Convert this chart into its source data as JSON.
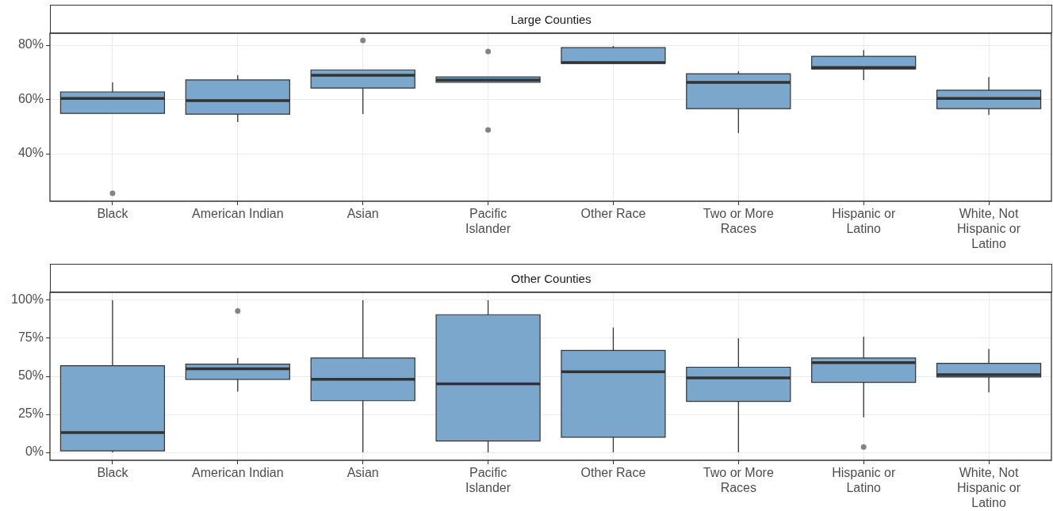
{
  "chart_data": [
    {
      "type": "box",
      "title": "Large Counties",
      "color": "#7ba7cc",
      "grid": true,
      "categories": [
        "Black",
        "American Indian",
        "Asian",
        "Pacific Islander",
        "Other Race",
        "Two or More Races",
        "Hispanic or Latino",
        "White, Not Hispanic or Latino"
      ],
      "ylim": [
        22.5,
        84.4
      ],
      "yticks": [
        {
          "value": 40,
          "label": "40%"
        },
        {
          "value": 60,
          "label": "60%"
        },
        {
          "value": 80,
          "label": "80%"
        }
      ],
      "boxes": [
        {
          "low": 54.9,
          "q1": 54.9,
          "median": 60.4,
          "q3": 62.8,
          "high": 66.3,
          "outliers": [
            25.4
          ]
        },
        {
          "low": 51.7,
          "q1": 54.6,
          "median": 59.6,
          "q3": 67.2,
          "high": 68.9
        },
        {
          "low": 54.6,
          "q1": 64.2,
          "median": 68.9,
          "q3": 70.9,
          "high": 70.9,
          "outliers": [
            81.8
          ]
        },
        {
          "low": 66.3,
          "q1": 66.3,
          "median": 67.2,
          "q3": 68.3,
          "high": 68.3,
          "outliers": [
            77.7,
            48.8
          ]
        },
        {
          "low": 73.3,
          "q1": 73.3,
          "median": 73.6,
          "q3": 79.1,
          "high": 79.7
        },
        {
          "low": 47.6,
          "q1": 56.6,
          "median": 66.3,
          "q3": 69.5,
          "high": 70.4
        },
        {
          "low": 67.2,
          "q1": 71.2,
          "median": 71.8,
          "q3": 75.9,
          "high": 78.2
        },
        {
          "low": 54.3,
          "q1": 56.6,
          "median": 60.4,
          "q3": 63.4,
          "high": 68.3
        }
      ]
    },
    {
      "type": "box",
      "title": "Other Counties",
      "color": "#7ba7cc",
      "grid": true,
      "categories": [
        "Black",
        "American Indian",
        "Asian",
        "Pacific Islander",
        "Other Race",
        "Two or More Races",
        "Hispanic or Latino",
        "White, Not Hispanic or Latino"
      ],
      "ylim": [
        -5.2,
        105.2
      ],
      "yticks": [
        {
          "value": 0,
          "label": "0%"
        },
        {
          "value": 25,
          "label": "25%"
        },
        {
          "value": 50,
          "label": "50%"
        },
        {
          "value": 75,
          "label": "75%"
        },
        {
          "value": 100,
          "label": "100%"
        }
      ],
      "boxes": [
        {
          "low": 0,
          "q1": 1,
          "median": 13,
          "q3": 57,
          "high": 100
        },
        {
          "low": 40,
          "q1": 48,
          "median": 55,
          "q3": 58,
          "high": 62,
          "outliers": [
            93
          ]
        },
        {
          "low": 0,
          "q1": 34,
          "median": 48,
          "q3": 62,
          "high": 100
        },
        {
          "low": 0,
          "q1": 7.5,
          "median": 45,
          "q3": 90.5,
          "high": 100
        },
        {
          "low": 0,
          "q1": 10,
          "median": 53,
          "q3": 67,
          "high": 82
        },
        {
          "low": 0,
          "q1": 33.5,
          "median": 49,
          "q3": 56,
          "high": 75
        },
        {
          "low": 23,
          "q1": 46,
          "median": 59,
          "q3": 62,
          "high": 76,
          "outliers": [
            3.5
          ]
        },
        {
          "low": 39.5,
          "q1": 49.5,
          "median": 51,
          "q3": 58.5,
          "high": 68
        }
      ]
    }
  ]
}
